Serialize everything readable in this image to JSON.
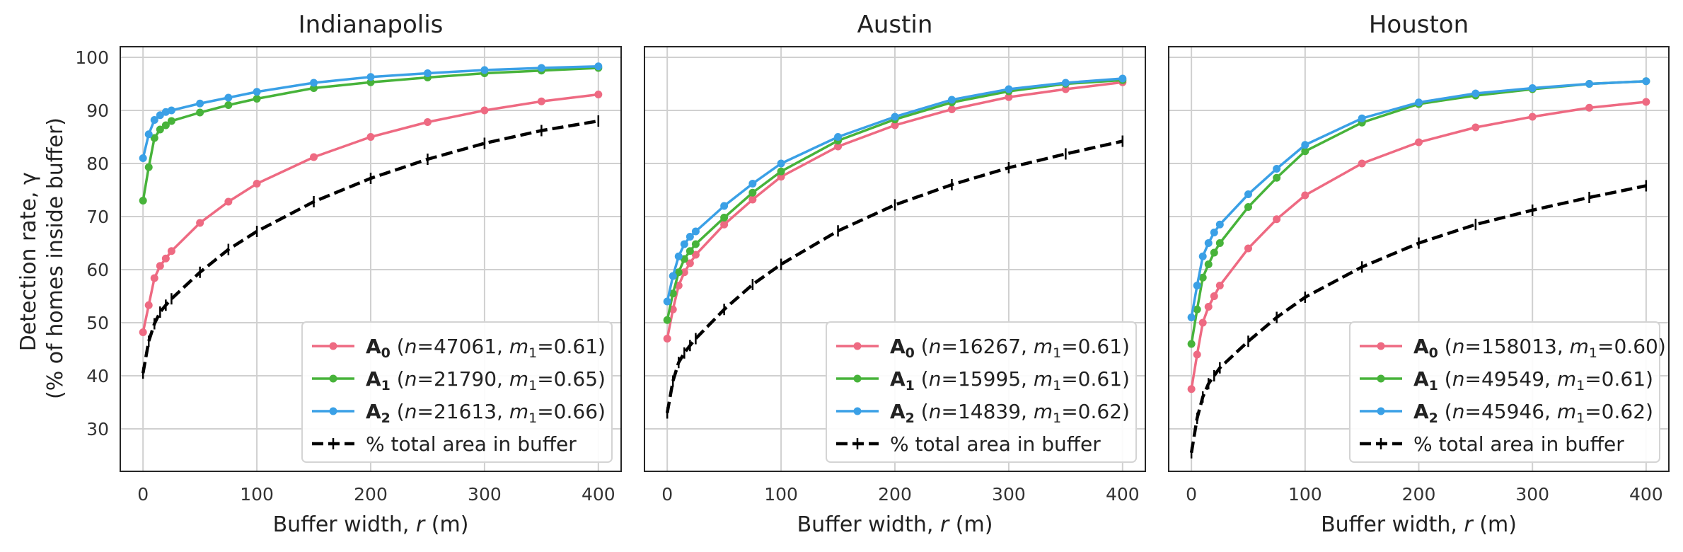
{
  "figure": {
    "ylabel_line1": "Detection rate, γ",
    "ylabel_line2": "(% of homes inside buffer)",
    "xlabel": "Buffer width, r (m)",
    "xlim": [
      -20,
      420
    ],
    "ylim": [
      22,
      102
    ],
    "xticks": [
      0,
      100,
      200,
      300,
      400
    ],
    "yticks": [
      30,
      40,
      50,
      60,
      70,
      80,
      90,
      100
    ],
    "grid": true,
    "legend_position": "lower-right",
    "colors": {
      "A0": "#ee6a82",
      "A1": "#47b33a",
      "A2": "#3aa0e6",
      "area": "#000000"
    }
  },
  "chart_data": [
    {
      "type": "line",
      "title": "Indianapolis",
      "xlabel": "Buffer width, r (m)",
      "ylabel": "Detection rate, γ (% of homes inside buffer)",
      "xlim": [
        -20,
        420
      ],
      "ylim": [
        22,
        102
      ],
      "series": [
        {
          "key": "A0",
          "name": "A0 (n=47061, m1=0.61)",
          "legend": {
            "sym": "A",
            "sub": "0",
            "n": "47061",
            "m": "0.61"
          },
          "x": [
            0,
            5,
            10,
            15,
            20,
            25,
            50,
            75,
            100,
            150,
            200,
            250,
            300,
            350,
            400
          ],
          "y": [
            48.2,
            53.3,
            58.4,
            60.7,
            62.1,
            63.5,
            68.8,
            72.8,
            76.2,
            81.2,
            85.0,
            87.8,
            90.0,
            91.7,
            93.0
          ]
        },
        {
          "key": "A1",
          "name": "A1 (n=21790, m1=0.65)",
          "legend": {
            "sym": "A",
            "sub": "1",
            "n": "21790",
            "m": "0.65"
          },
          "x": [
            0,
            5,
            10,
            15,
            20,
            25,
            50,
            75,
            100,
            150,
            200,
            250,
            300,
            350,
            400
          ],
          "y": [
            73.0,
            79.3,
            84.8,
            86.4,
            87.2,
            88.0,
            89.6,
            91.0,
            92.2,
            94.2,
            95.3,
            96.2,
            97.0,
            97.5,
            98.0
          ]
        },
        {
          "key": "A2",
          "name": "A2 (n=21613, m1=0.66)",
          "legend": {
            "sym": "A",
            "sub": "2",
            "n": "21613",
            "m": "0.66"
          },
          "x": [
            0,
            5,
            10,
            15,
            20,
            25,
            50,
            75,
            100,
            150,
            200,
            250,
            300,
            350,
            400
          ],
          "y": [
            81.0,
            85.5,
            88.2,
            89.1,
            89.7,
            90.0,
            91.3,
            92.4,
            93.5,
            95.2,
            96.3,
            97.0,
            97.6,
            98.0,
            98.3
          ]
        },
        {
          "key": "area",
          "name": "% total area in buffer",
          "dashed": true,
          "x": [
            0,
            5,
            10,
            15,
            20,
            25,
            50,
            75,
            100,
            150,
            200,
            250,
            300,
            350,
            400
          ],
          "y": [
            40.5,
            46.5,
            49.8,
            52.0,
            53.3,
            54.5,
            59.5,
            63.8,
            67.2,
            72.8,
            77.2,
            80.8,
            83.8,
            86.2,
            88.0
          ]
        }
      ]
    },
    {
      "type": "line",
      "title": "Austin",
      "xlabel": "Buffer width, r (m)",
      "ylabel": "",
      "xlim": [
        -20,
        420
      ],
      "ylim": [
        22,
        102
      ],
      "series": [
        {
          "key": "A0",
          "name": "A0 (n=16267, m1=0.61)",
          "legend": {
            "sym": "A",
            "sub": "0",
            "n": "16267",
            "m": "0.61"
          },
          "x": [
            0,
            5,
            10,
            15,
            20,
            25,
            50,
            75,
            100,
            150,
            200,
            250,
            300,
            350,
            400
          ],
          "y": [
            47.0,
            52.5,
            57.0,
            59.5,
            61.2,
            62.8,
            68.5,
            73.2,
            77.5,
            83.2,
            87.2,
            90.2,
            92.5,
            94.0,
            95.3
          ]
        },
        {
          "key": "A1",
          "name": "A1 (n=15995, m1=0.61)",
          "legend": {
            "sym": "A",
            "sub": "1",
            "n": "15995",
            "m": "0.61"
          },
          "x": [
            0,
            5,
            10,
            15,
            20,
            25,
            50,
            75,
            100,
            150,
            200,
            250,
            300,
            350,
            400
          ],
          "y": [
            50.5,
            55.5,
            59.5,
            62.0,
            63.5,
            64.8,
            69.8,
            74.5,
            78.5,
            84.3,
            88.3,
            91.5,
            93.6,
            95.0,
            95.7
          ]
        },
        {
          "key": "A2",
          "name": "A2 (n=14839, m1=0.62)",
          "legend": {
            "sym": "A",
            "sub": "2",
            "n": "14839",
            "m": "0.62"
          },
          "x": [
            0,
            5,
            10,
            15,
            20,
            25,
            50,
            75,
            100,
            150,
            200,
            250,
            300,
            350,
            400
          ],
          "y": [
            54.0,
            58.8,
            62.5,
            64.8,
            66.2,
            67.2,
            72.0,
            76.2,
            80.0,
            85.0,
            88.8,
            92.0,
            94.0,
            95.2,
            96.0
          ]
        },
        {
          "key": "area",
          "name": "% total area in buffer",
          "dashed": true,
          "x": [
            0,
            5,
            10,
            15,
            20,
            25,
            50,
            75,
            100,
            150,
            200,
            250,
            300,
            350,
            400
          ],
          "y": [
            33.0,
            39.0,
            42.5,
            44.3,
            45.7,
            47.0,
            52.5,
            57.2,
            61.0,
            67.3,
            72.2,
            76.0,
            79.2,
            81.8,
            84.2
          ]
        }
      ]
    },
    {
      "type": "line",
      "title": "Houston",
      "xlabel": "Buffer width, r (m)",
      "ylabel": "",
      "xlim": [
        -20,
        420
      ],
      "ylim": [
        22,
        102
      ],
      "series": [
        {
          "key": "A0",
          "name": "A0 (n=158013, m1=0.60)",
          "legend": {
            "sym": "A",
            "sub": "0",
            "n": "158013",
            "m": "0.60"
          },
          "x": [
            0,
            5,
            10,
            15,
            20,
            25,
            50,
            75,
            100,
            150,
            200,
            250,
            300,
            350,
            400
          ],
          "y": [
            37.5,
            44.0,
            50.0,
            53.0,
            55.0,
            57.0,
            64.0,
            69.5,
            74.0,
            80.0,
            84.0,
            86.8,
            88.8,
            90.5,
            91.6
          ]
        },
        {
          "key": "A1",
          "name": "A1 (n=49549, m1=0.61)",
          "legend": {
            "sym": "A",
            "sub": "1",
            "n": "49549",
            "m": "0.61"
          },
          "x": [
            0,
            5,
            10,
            15,
            20,
            25,
            50,
            75,
            100,
            150,
            200,
            250,
            300,
            350,
            400
          ],
          "y": [
            46.0,
            52.5,
            58.5,
            61.0,
            63.2,
            65.0,
            71.8,
            77.3,
            82.3,
            87.7,
            91.2,
            92.8,
            94.0,
            95.0,
            95.5
          ]
        },
        {
          "key": "A2",
          "name": "A2 (n=45946, m1=0.62)",
          "legend": {
            "sym": "A",
            "sub": "2",
            "n": "45946",
            "m": "0.62"
          },
          "x": [
            0,
            5,
            10,
            15,
            20,
            25,
            50,
            75,
            100,
            150,
            200,
            250,
            300,
            350,
            400
          ],
          "y": [
            51.0,
            57.0,
            62.5,
            65.0,
            67.0,
            68.5,
            74.2,
            79.0,
            83.5,
            88.5,
            91.5,
            93.2,
            94.2,
            95.0,
            95.5
          ]
        },
        {
          "key": "area",
          "name": "% total area in buffer",
          "dashed": true,
          "x": [
            0,
            5,
            10,
            15,
            20,
            25,
            50,
            75,
            100,
            150,
            200,
            250,
            300,
            350,
            400
          ],
          "y": [
            25.5,
            32.0,
            36.0,
            38.5,
            40.0,
            41.5,
            46.5,
            51.0,
            54.8,
            60.5,
            65.0,
            68.5,
            71.2,
            73.6,
            75.8
          ]
        }
      ]
    }
  ]
}
